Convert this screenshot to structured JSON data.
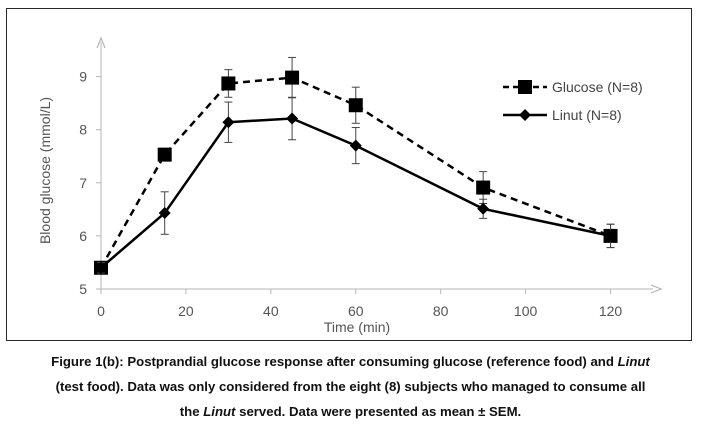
{
  "chart_data": {
    "type": "line",
    "xlabel": "Time (min)",
    "ylabel": "Blood glucose (mmol/L)",
    "xlim": [
      0,
      130
    ],
    "ylim": [
      5,
      9.5
    ],
    "x_ticks": [
      0,
      20,
      40,
      60,
      80,
      100,
      120
    ],
    "y_ticks": [
      5,
      6,
      7,
      8,
      9
    ],
    "grid": false,
    "legend_position": "top-right",
    "series": [
      {
        "name": "Glucose (N=8)",
        "line_style": "dashed",
        "marker": "square",
        "color": "#000000",
        "x": [
          0,
          15,
          30,
          45,
          60,
          90,
          120
        ],
        "y": [
          5.4,
          7.53,
          8.87,
          8.98,
          8.46,
          6.91,
          6.0
        ],
        "error": [
          0.1,
          0.0,
          0.26,
          0.38,
          0.34,
          0.3,
          0.22
        ]
      },
      {
        "name": "Linut (N=8)",
        "line_style": "solid",
        "marker": "diamond",
        "color": "#000000",
        "x": [
          0,
          15,
          30,
          45,
          60,
          90,
          120
        ],
        "y": [
          5.4,
          6.43,
          8.14,
          8.21,
          7.7,
          6.51,
          6.0
        ],
        "error": [
          0.1,
          0.4,
          0.38,
          0.4,
          0.34,
          0.18,
          0.22
        ]
      }
    ]
  },
  "caption": {
    "line1_a": "Figure 1(b): Postprandial glucose response after consuming glucose (reference food) and ",
    "line1_italic": "Linut",
    "line2": "(test food).  Data was only considered from the eight (8) subjects who managed to consume all",
    "line3_a": "the ",
    "line3_italic": "Linut",
    "line3_b": " served. Data were presented as mean ± SEM."
  }
}
